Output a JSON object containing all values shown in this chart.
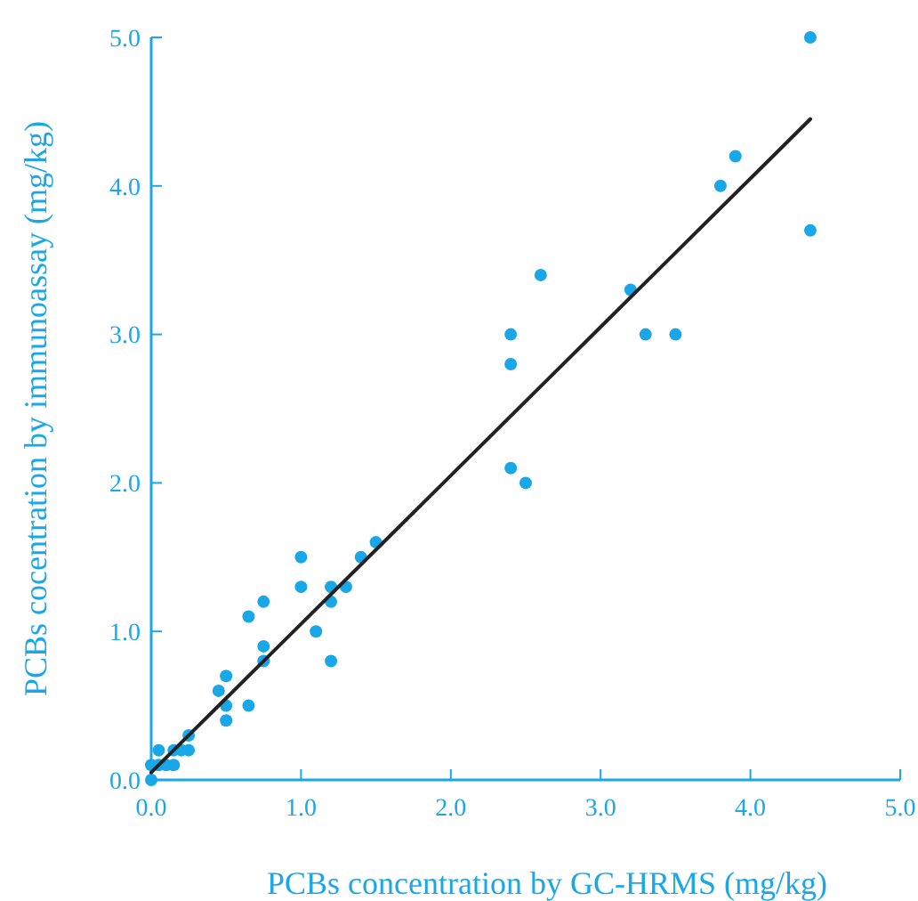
{
  "chart_data": {
    "type": "scatter",
    "xlabel": "PCBs concentration by GC-HRMS (mg/kg)",
    "ylabel": "PCBs cocentration by immunoassay (mg/kg)",
    "xlim": [
      0,
      5
    ],
    "ylim": [
      0,
      5
    ],
    "xticks": [
      {
        "value": 0,
        "label": "0.0"
      },
      {
        "value": 1,
        "label": "1.0"
      },
      {
        "value": 2,
        "label": "2.0"
      },
      {
        "value": 3,
        "label": "3.0"
      },
      {
        "value": 4,
        "label": "4.0"
      },
      {
        "value": 5,
        "label": "5.0"
      }
    ],
    "yticks": [
      {
        "value": 0,
        "label": "0.0"
      },
      {
        "value": 1,
        "label": "1.0"
      },
      {
        "value": 2,
        "label": "2.0"
      },
      {
        "value": 3,
        "label": "3.0"
      },
      {
        "value": 4,
        "label": "4.0"
      },
      {
        "value": 5,
        "label": "5.0"
      }
    ],
    "grid": false,
    "marker": "circle",
    "series": [
      {
        "color": "#1aa7e8",
        "x": [
          4.4,
          4.4,
          3.9,
          3.8,
          3.2,
          3.3,
          3.5,
          2.6,
          2.4,
          2.4,
          2.4,
          2.5,
          1.5,
          1.4,
          1.2,
          1.3,
          1.2,
          1.0,
          1.0,
          1.1,
          1.2,
          0.75,
          0.75,
          0.75,
          0.65,
          0.65,
          0.5,
          0.5,
          0.5,
          0.45,
          0.25,
          0.2,
          0.25,
          0.15,
          0.1,
          0.15,
          0.05,
          0.05,
          0.0,
          0.0
        ],
        "values": [
          5.0,
          3.7,
          4.2,
          4.0,
          3.3,
          3.0,
          3.0,
          3.4,
          3.0,
          2.8,
          2.1,
          2.0,
          1.6,
          1.5,
          1.3,
          1.3,
          1.2,
          1.5,
          1.3,
          1.0,
          0.8,
          1.2,
          0.9,
          0.8,
          1.1,
          0.5,
          0.7,
          0.5,
          0.4,
          0.6,
          0.3,
          0.2,
          0.2,
          0.2,
          0.1,
          0.1,
          0.2,
          0.1,
          0.1,
          0.0
        ]
      },
      {
        "type": "line",
        "color": "#222222",
        "marker": "none",
        "line_style": "solid",
        "x": [
          0,
          0.5,
          1.0,
          1.5,
          2.0,
          2.5,
          3.0,
          3.5,
          4.0,
          4.4
        ],
        "values": [
          0.05,
          0.55,
          1.05,
          1.55,
          2.05,
          2.55,
          3.05,
          3.55,
          4.05,
          4.45
        ]
      }
    ]
  }
}
